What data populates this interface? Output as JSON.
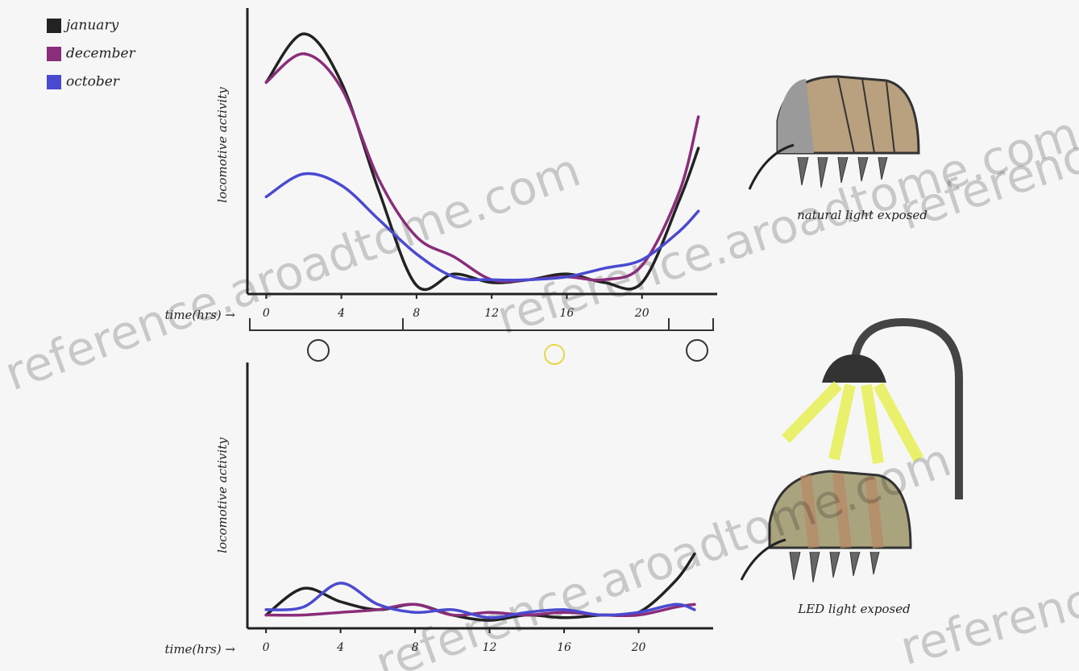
{
  "watermark": "reference.aroadtome.com",
  "chart_data": [
    {
      "type": "line",
      "ylabel": "locomotive activity",
      "xlabel": "time(hrs) →",
      "caption": "natural light exposed",
      "x": [
        0,
        2,
        4,
        6,
        8,
        10,
        12,
        14,
        16,
        18,
        20,
        22,
        23
      ],
      "xlim": [
        -1,
        24
      ],
      "xticks": [
        0,
        4,
        8,
        12,
        16,
        20
      ],
      "ylim": [
        0,
        10
      ],
      "legend": "top-left",
      "series": [
        {
          "name": "january",
          "color": "#222222",
          "values": [
            7.4,
            9.1,
            7.4,
            3.6,
            0.3,
            0.7,
            0.4,
            0.5,
            0.7,
            0.4,
            0.4,
            3.3,
            5.1
          ]
        },
        {
          "name": "december",
          "color": "#8a2d7a",
          "values": [
            7.4,
            8.4,
            7.2,
            4.0,
            2.0,
            1.3,
            0.5,
            0.5,
            0.6,
            0.5,
            1.0,
            3.6,
            6.2
          ]
        },
        {
          "name": "october",
          "color": "#4a4ad0",
          "values": [
            3.4,
            4.2,
            3.8,
            2.6,
            1.4,
            0.6,
            0.5,
            0.5,
            0.6,
            0.9,
            1.2,
            2.2,
            2.9
          ]
        }
      ]
    },
    {
      "type": "line",
      "ylabel": "locomotive activity",
      "xlabel": "time(hrs) →",
      "caption": "LED light exposed",
      "x": [
        0,
        2,
        4,
        6,
        8,
        10,
        12,
        14,
        16,
        18,
        20,
        22,
        23
      ],
      "xlim": [
        -1,
        24
      ],
      "xticks": [
        0,
        4,
        8,
        12,
        16,
        20
      ],
      "ylim": [
        0,
        10
      ],
      "series": [
        {
          "color": "#222222",
          "values": [
            0.5,
            1.5,
            1.0,
            0.7,
            0.9,
            0.5,
            0.3,
            0.5,
            0.4,
            0.5,
            0.6,
            1.8,
            2.8
          ]
        },
        {
          "color": "#8a2d7a",
          "values": [
            0.5,
            0.5,
            0.6,
            0.7,
            0.9,
            0.5,
            0.6,
            0.5,
            0.6,
            0.5,
            0.5,
            0.8,
            0.9
          ]
        },
        {
          "color": "#4a4ad0",
          "values": [
            0.7,
            0.8,
            1.7,
            0.9,
            0.6,
            0.7,
            0.4,
            0.6,
            0.7,
            0.5,
            0.6,
            0.9,
            0.7
          ]
        }
      ]
    }
  ]
}
